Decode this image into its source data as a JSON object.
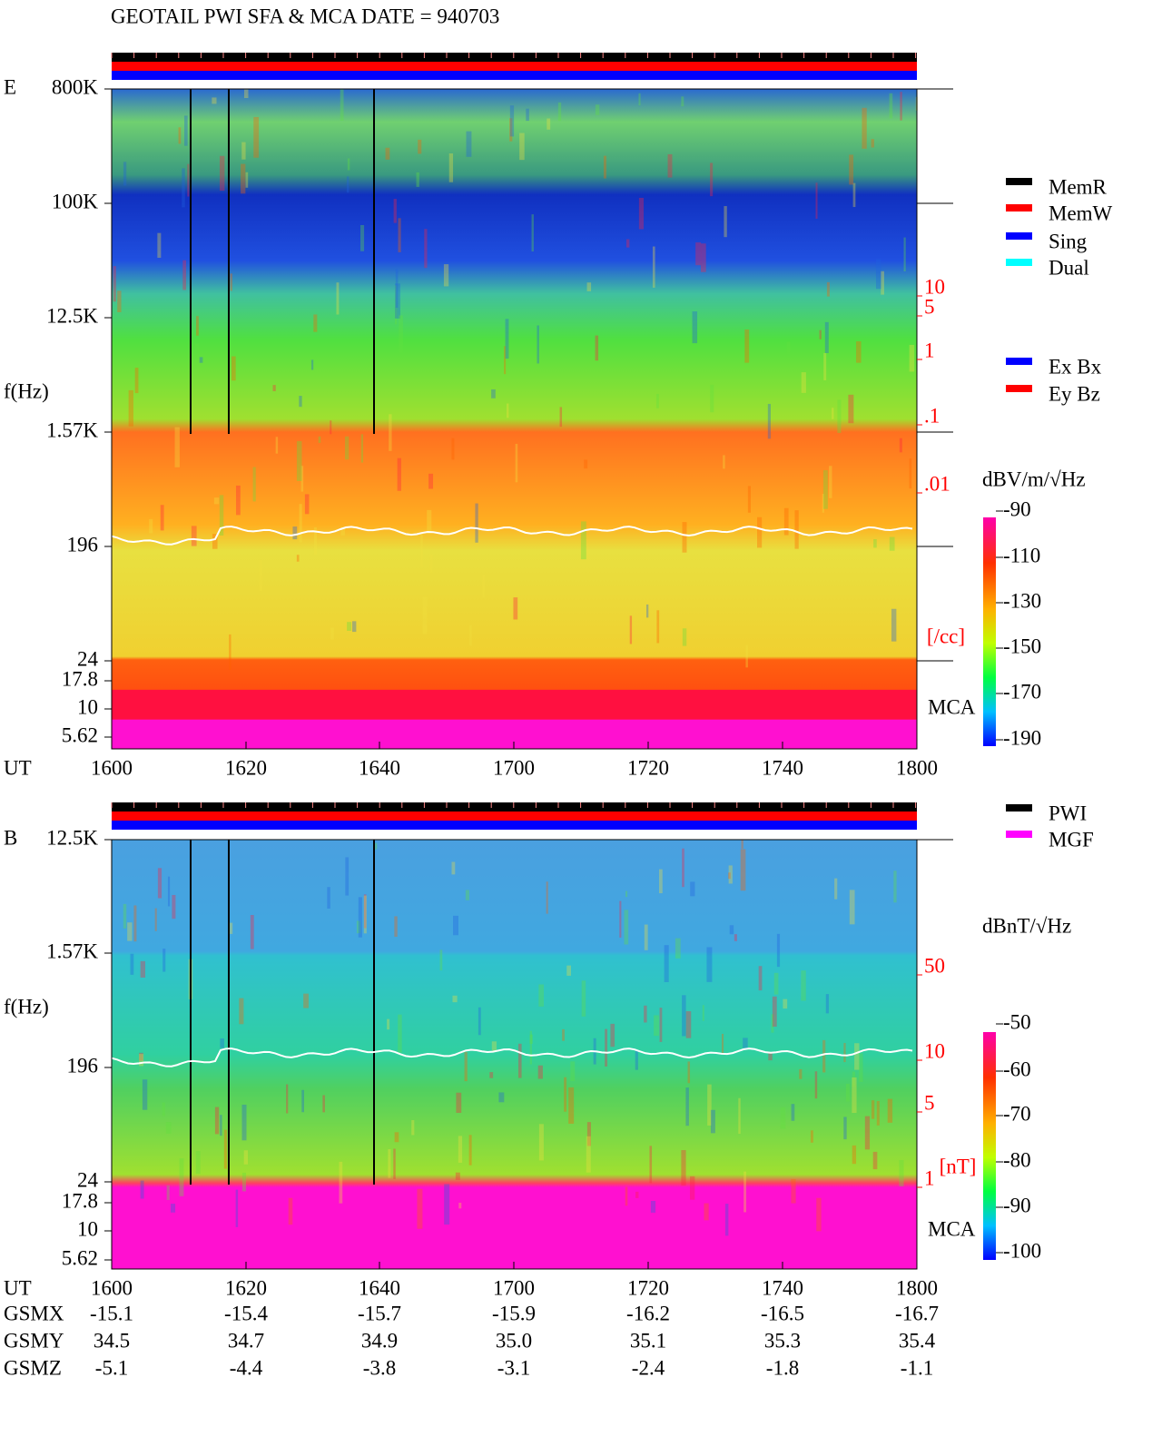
{
  "title": "GEOTAIL  PWI SFA & MCA   DATE = 940703",
  "panels": [
    {
      "label": "E",
      "y_label": "f(Hz)",
      "y_ticks": [
        "800K",
        "100K",
        "12.5K",
        "1.57K",
        "196",
        "24",
        "17.8",
        "10",
        "5.62"
      ],
      "x_label": "UT",
      "x_ticks": [
        "1600",
        "1620",
        "1640",
        "1700",
        "1720",
        "1740",
        "1800"
      ],
      "mca_label": "MCA",
      "scale_ticks": [
        "10",
        "5",
        "1",
        ".1",
        ".01"
      ],
      "scale_unit": "[/cc]",
      "colorbar_unit": "dBV/m/√Hz",
      "colorbar_ticks": [
        "-90",
        "-110",
        "-130",
        "-150",
        "-170",
        "-190"
      ]
    },
    {
      "label": "B",
      "y_label": "f(Hz)",
      "y_ticks": [
        "12.5K",
        "1.57K",
        "196",
        "24",
        "17.8",
        "10",
        "5.62"
      ],
      "x_label": "UT",
      "x_ticks": [
        "1600",
        "1620",
        "1640",
        "1700",
        "1720",
        "1740",
        "1800"
      ],
      "mca_label": "MCA",
      "scale_ticks": [
        "50",
        "10",
        "5",
        "1"
      ],
      "scale_unit": "[nT]",
      "colorbar_unit": "dBnT/√Hz",
      "colorbar_ticks": [
        "-50",
        "-60",
        "-70",
        "-80",
        "-90",
        "-100"
      ]
    }
  ],
  "legend_modes": [
    {
      "name": "MemR",
      "color": "#000000"
    },
    {
      "name": "MemW",
      "color": "#ff0000"
    },
    {
      "name": "Sing",
      "color": "#0000ff"
    },
    {
      "name": "Dual",
      "color": "#00ffff"
    }
  ],
  "legend_components": [
    {
      "name": "Ex Bx",
      "color": "#0000ff"
    },
    {
      "name": "Ey Bz",
      "color": "#ff0000"
    }
  ],
  "legend_sources": [
    {
      "name": "PWI",
      "color": "#000000"
    },
    {
      "name": "MGF",
      "color": "#ff00ff"
    }
  ],
  "orbit": [
    {
      "label": "GSMX",
      "values": [
        "-15.1",
        "-15.4",
        "-15.7",
        "-15.9",
        "-16.2",
        "-16.5",
        "-16.7"
      ]
    },
    {
      "label": "GSMY",
      "values": [
        "34.5",
        "34.7",
        "34.9",
        "35.0",
        "35.1",
        "35.3",
        "35.4"
      ]
    },
    {
      "label": "GSMZ",
      "values": [
        "-5.1",
        "-4.4",
        "-3.8",
        "-3.1",
        "-2.4",
        "-1.8",
        "-1.1"
      ]
    }
  ]
}
